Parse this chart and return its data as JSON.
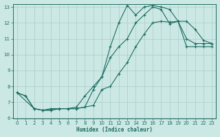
{
  "xlabel": "Humidex (Indice chaleur)",
  "bg_color": "#cce8e4",
  "grid_color": "#b0d0cc",
  "line_color": "#1a6b60",
  "xlim": [
    -0.5,
    23.5
  ],
  "ylim": [
    6,
    13.2
  ],
  "xticks": [
    0,
    1,
    2,
    3,
    4,
    5,
    6,
    7,
    8,
    9,
    10,
    11,
    12,
    13,
    14,
    15,
    16,
    17,
    18,
    19,
    20,
    21,
    22,
    23
  ],
  "yticks": [
    6,
    7,
    8,
    9,
    10,
    11,
    12,
    13
  ],
  "line1_x": [
    0,
    1,
    2,
    3,
    4,
    5,
    6,
    7,
    8,
    9,
    10,
    11,
    12,
    13,
    14,
    15,
    16,
    17,
    18,
    19,
    20,
    21,
    22,
    23
  ],
  "line1_y": [
    7.6,
    7.4,
    6.6,
    6.5,
    6.6,
    6.6,
    6.6,
    6.6,
    6.7,
    6.8,
    7.8,
    8.0,
    8.8,
    9.5,
    10.5,
    11.3,
    12.0,
    12.1,
    12.05,
    12.1,
    12.1,
    11.6,
    10.9,
    10.7
  ],
  "line2_x": [
    0,
    2,
    3,
    4,
    5,
    6,
    7,
    8,
    9,
    10,
    11,
    12,
    13,
    14,
    15,
    16,
    17,
    18,
    19,
    20,
    21,
    22,
    23
  ],
  "line2_y": [
    7.6,
    6.6,
    6.5,
    6.5,
    6.6,
    6.6,
    6.7,
    7.4,
    8.0,
    8.6,
    10.5,
    12.0,
    13.1,
    12.5,
    13.0,
    13.1,
    13.0,
    12.85,
    12.1,
    11.0,
    10.7,
    10.7,
    10.7
  ],
  "line3_x": [
    0,
    1,
    2,
    3,
    4,
    5,
    6,
    7,
    8,
    9,
    10,
    11,
    12,
    13,
    14,
    15,
    16,
    17,
    18,
    19,
    20,
    21,
    22,
    23
  ],
  "line3_y": [
    7.6,
    7.4,
    6.6,
    6.5,
    6.5,
    6.6,
    6.6,
    6.6,
    6.7,
    7.8,
    8.6,
    9.8,
    10.5,
    11.0,
    12.0,
    12.5,
    13.0,
    12.85,
    11.95,
    12.1,
    10.5,
    10.5,
    10.5,
    10.5
  ]
}
